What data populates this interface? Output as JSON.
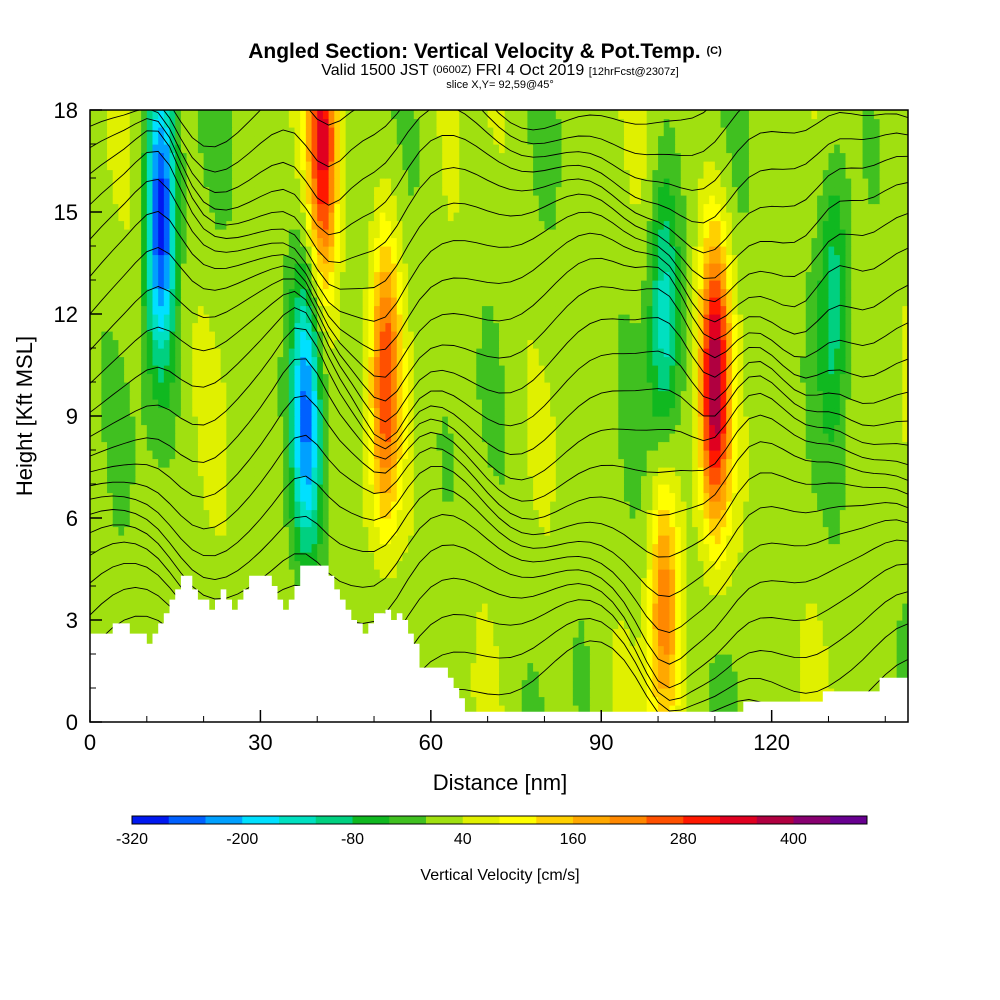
{
  "header": {
    "title": "Angled Section: Vertical Velocity & Pot.Temp.",
    "title_mark": "(C)",
    "valid_main": "Valid 1500 JST",
    "valid_utc": "(0600Z)",
    "valid_date": "FRI 4 Oct 2019",
    "forecast": "[12hrFcst@2307z]",
    "slice": "slice X,Y= 92,59@45°"
  },
  "chart_data": {
    "type": "heatmap",
    "title": "Angled Section: Vertical Velocity & Pot.Temp.",
    "xlabel": "Distance [nm]",
    "ylabel": "Height [Kft MSL]",
    "xlim": [
      0,
      144
    ],
    "ylim": [
      0,
      18
    ],
    "x_ticks": [
      0,
      30,
      60,
      90,
      120
    ],
    "y_ticks": [
      0,
      3,
      6,
      9,
      12,
      15,
      18
    ],
    "x_tick_labels": [
      "0",
      "30",
      "60",
      "90",
      "120"
    ],
    "y_tick_labels": [
      "0",
      "3",
      "6",
      "9",
      "12",
      "15",
      "18"
    ],
    "field": "Vertical Velocity",
    "contour_field": "Potential Temperature",
    "features": [
      {
        "kind": "downdraft",
        "x": 12.5,
        "y": 15.0,
        "w_cm_s": -320
      },
      {
        "kind": "downdraft",
        "x": 38,
        "y": 9,
        "w_cm_s": -240
      },
      {
        "kind": "updraft",
        "x": 41,
        "y": 17,
        "w_cm_s": 300
      },
      {
        "kind": "updraft",
        "x": 52,
        "y": 10,
        "w_cm_s": 240
      },
      {
        "kind": "updraft",
        "x": 110,
        "y": 10,
        "w_cm_s": 360
      },
      {
        "kind": "updraft",
        "x": 101,
        "y": 3.5,
        "w_cm_s": 200
      },
      {
        "kind": "downdraft",
        "x": 101,
        "y": 12,
        "w_cm_s": -160
      },
      {
        "kind": "downdraft",
        "x": 131,
        "y": 13,
        "w_cm_s": -120
      }
    ],
    "terrain": [
      [
        0,
        2.6
      ],
      [
        3,
        2.6
      ],
      [
        4,
        2.9
      ],
      [
        6,
        2.9
      ],
      [
        7,
        2.6
      ],
      [
        9,
        2.6
      ],
      [
        10,
        2.3
      ],
      [
        11,
        2.6
      ],
      [
        12,
        2.9
      ],
      [
        13,
        3.2
      ],
      [
        14,
        3.6
      ],
      [
        15,
        3.9
      ],
      [
        16,
        4.3
      ],
      [
        17,
        4.3
      ],
      [
        18,
        3.9
      ],
      [
        19,
        3.6
      ],
      [
        20,
        3.6
      ],
      [
        21,
        3.3
      ],
      [
        22,
        3.6
      ],
      [
        23,
        3.9
      ],
      [
        24,
        3.6
      ],
      [
        25,
        3.3
      ],
      [
        26,
        3.6
      ],
      [
        27,
        3.9
      ],
      [
        28,
        4.3
      ],
      [
        31,
        4.3
      ],
      [
        32,
        4.0
      ],
      [
        33,
        3.6
      ],
      [
        34,
        3.3
      ],
      [
        35,
        3.6
      ],
      [
        36,
        4.0
      ],
      [
        37,
        4.6
      ],
      [
        41,
        4.6
      ],
      [
        42,
        4.3
      ],
      [
        43,
        3.9
      ],
      [
        44,
        3.6
      ],
      [
        45,
        3.3
      ],
      [
        46,
        3.0
      ],
      [
        47,
        2.9
      ],
      [
        48,
        2.6
      ],
      [
        49,
        2.9
      ],
      [
        50,
        3.2
      ],
      [
        51,
        3.2
      ],
      [
        52,
        3.3
      ],
      [
        53,
        3.0
      ],
      [
        54,
        3.2
      ],
      [
        55,
        3.0
      ],
      [
        56,
        2.6
      ],
      [
        57,
        2.3
      ],
      [
        58,
        1.6
      ],
      [
        62,
        1.6
      ],
      [
        63,
        1.3
      ],
      [
        64,
        1.0
      ],
      [
        65,
        0.7
      ],
      [
        66,
        0.3
      ],
      [
        114,
        0.3
      ],
      [
        115,
        0.6
      ],
      [
        128,
        0.6
      ],
      [
        129,
        0.9
      ],
      [
        138,
        0.9
      ],
      [
        139,
        1.3
      ],
      [
        144,
        1.3
      ]
    ],
    "colorbar": {
      "label": "Vertical Velocity [cm/s]",
      "units": "cm/s",
      "range": [
        -320,
        480
      ],
      "ticks": [
        -320,
        -200,
        -80,
        40,
        160,
        280,
        400
      ],
      "tick_labels": [
        "-320",
        "-200",
        "-80",
        "40",
        "160",
        "280",
        "400"
      ],
      "colors": [
        "#0018f0",
        "#0060ff",
        "#00a0ff",
        "#00e0ff",
        "#00e0c0",
        "#00d080",
        "#10b820",
        "#40c020",
        "#a0e010",
        "#e0f000",
        "#ffff00",
        "#ffd000",
        "#ffa800",
        "#ff8800",
        "#ff5000",
        "#ff1800",
        "#e00020",
        "#b00040",
        "#880070",
        "#680090"
      ]
    }
  }
}
